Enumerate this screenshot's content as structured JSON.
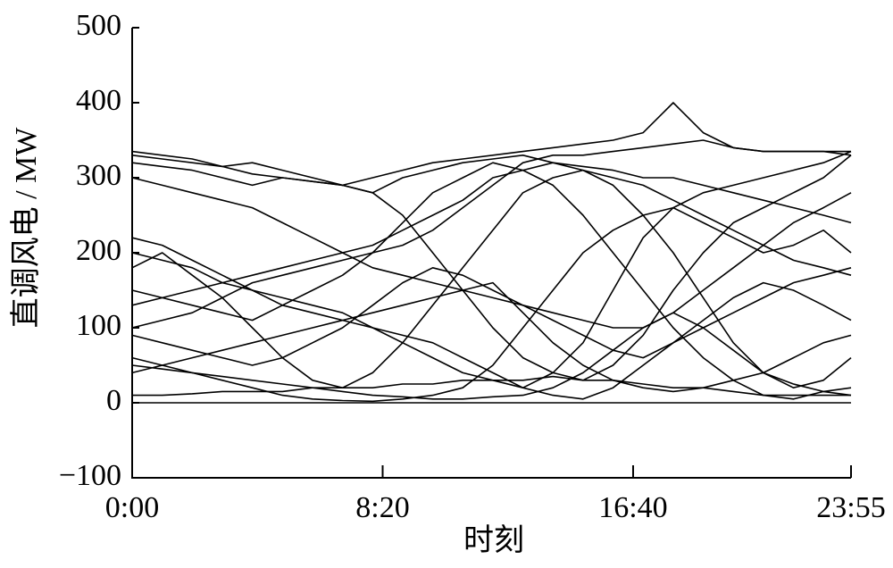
{
  "chart_data": {
    "type": "line",
    "ylabel": "直调风电 / MW",
    "xlabel": "时刻",
    "xlim": [
      0,
      1435
    ],
    "xticks": [
      {
        "value": 0,
        "label": "0:00"
      },
      {
        "value": 500,
        "label": "8:20"
      },
      {
        "value": 1000,
        "label": "16:40"
      },
      {
        "value": 1435,
        "label": "23:55"
      }
    ],
    "ylim": [
      -100,
      500
    ],
    "yticks": [
      {
        "value": -100,
        "label": "−100"
      },
      0,
      100,
      200,
      300,
      400,
      500
    ],
    "x": [
      0,
      60,
      120,
      180,
      240,
      300,
      360,
      420,
      480,
      540,
      600,
      660,
      720,
      780,
      840,
      900,
      960,
      1020,
      1080,
      1140,
      1200,
      1260,
      1320,
      1380,
      1435
    ],
    "series": [
      {
        "color": "#000000",
        "values": [
          335,
          330,
          325,
          315,
          305,
          300,
          295,
          290,
          280,
          250,
          200,
          150,
          100,
          60,
          40,
          30,
          50,
          90,
          150,
          200,
          240,
          260,
          280,
          300,
          330
        ]
      },
      {
        "color": "#000000",
        "values": [
          320,
          315,
          310,
          300,
          290,
          300,
          295,
          290,
          280,
          300,
          310,
          320,
          325,
          330,
          320,
          310,
          300,
          290,
          270,
          250,
          230,
          210,
          190,
          180,
          170
        ]
      },
      {
        "color": "#000000",
        "values": [
          200,
          190,
          180,
          160,
          150,
          140,
          130,
          120,
          100,
          80,
          60,
          40,
          30,
          20,
          40,
          80,
          150,
          220,
          260,
          280,
          290,
          300,
          310,
          320,
          335
        ]
      },
      {
        "color": "#000000",
        "values": [
          150,
          140,
          130,
          120,
          110,
          130,
          150,
          170,
          200,
          240,
          280,
          300,
          320,
          310,
          290,
          250,
          200,
          150,
          100,
          60,
          30,
          10,
          5,
          15,
          20
        ]
      },
      {
        "color": "#000000",
        "values": [
          100,
          110,
          120,
          140,
          160,
          170,
          180,
          190,
          200,
          210,
          230,
          260,
          290,
          320,
          330,
          330,
          335,
          340,
          345,
          350,
          340,
          335,
          335,
          335,
          335
        ]
      },
      {
        "color": "#000000",
        "values": [
          60,
          50,
          40,
          30,
          20,
          10,
          5,
          3,
          2,
          5,
          10,
          20,
          50,
          100,
          150,
          200,
          230,
          250,
          260,
          240,
          220,
          200,
          210,
          230,
          200
        ]
      },
      {
        "color": "#000000",
        "values": [
          220,
          210,
          190,
          170,
          150,
          130,
          120,
          110,
          100,
          90,
          80,
          60,
          40,
          20,
          10,
          5,
          20,
          50,
          80,
          100,
          120,
          140,
          160,
          170,
          180
        ]
      },
      {
        "color": "#000000",
        "values": [
          10,
          10,
          12,
          15,
          15,
          15,
          20,
          20,
          20,
          25,
          25,
          30,
          30,
          30,
          35,
          30,
          30,
          25,
          20,
          20,
          15,
          10,
          10,
          10,
          10
        ]
      },
      {
        "color": "#000000",
        "values": [
          0,
          0,
          0,
          0,
          0,
          0,
          0,
          0,
          0,
          0,
          0,
          0,
          0,
          0,
          0,
          0,
          0,
          0,
          0,
          0,
          0,
          0,
          0,
          0,
          0
        ]
      },
      {
        "color": "#000000",
        "values": [
          180,
          200,
          170,
          140,
          100,
          60,
          30,
          20,
          40,
          80,
          130,
          180,
          230,
          280,
          300,
          310,
          290,
          250,
          200,
          140,
          80,
          40,
          20,
          30,
          60
        ]
      },
      {
        "color": "#000000",
        "values": [
          130,
          140,
          150,
          160,
          170,
          180,
          190,
          200,
          210,
          230,
          250,
          270,
          300,
          310,
          320,
          315,
          310,
          300,
          300,
          290,
          280,
          270,
          260,
          250,
          240
        ]
      },
      {
        "color": "#000000",
        "values": [
          90,
          80,
          70,
          60,
          50,
          60,
          80,
          100,
          130,
          160,
          180,
          170,
          150,
          130,
          110,
          90,
          70,
          60,
          80,
          110,
          140,
          160,
          150,
          130,
          110
        ]
      },
      {
        "color": "#000000",
        "values": [
          40,
          50,
          60,
          70,
          80,
          90,
          100,
          110,
          120,
          130,
          140,
          150,
          160,
          120,
          80,
          50,
          30,
          20,
          15,
          20,
          30,
          40,
          60,
          80,
          90
        ]
      },
      {
        "color": "#000000",
        "values": [
          300,
          290,
          280,
          270,
          260,
          240,
          220,
          200,
          180,
          170,
          160,
          150,
          140,
          130,
          120,
          110,
          100,
          100,
          120,
          150,
          180,
          210,
          240,
          260,
          280
        ]
      },
      {
        "color": "#000000",
        "values": [
          330,
          325,
          320,
          315,
          320,
          310,
          300,
          290,
          300,
          310,
          320,
          325,
          330,
          335,
          340,
          345,
          350,
          360,
          400,
          360,
          340,
          335,
          335,
          335,
          330
        ]
      },
      {
        "color": "#000000",
        "values": [
          50,
          45,
          40,
          35,
          30,
          25,
          20,
          15,
          10,
          8,
          5,
          5,
          8,
          10,
          20,
          40,
          70,
          100,
          120,
          100,
          70,
          40,
          25,
          15,
          10
        ]
      }
    ]
  }
}
